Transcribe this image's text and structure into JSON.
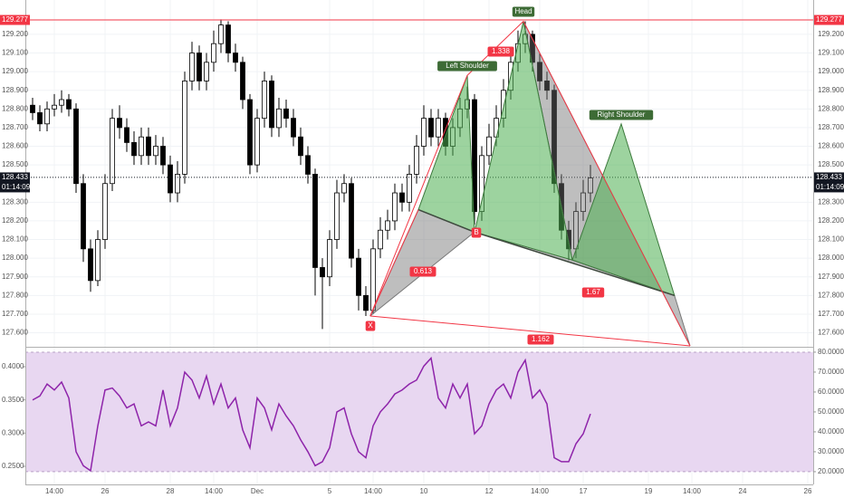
{
  "chart_data": {
    "type": "candlestick",
    "categories": [
      null,
      null,
      null,
      "14:00",
      null,
      null,
      null,
      null,
      null,
      null,
      "26",
      null,
      null,
      null,
      null,
      null,
      null,
      null,
      null,
      "28",
      null,
      null,
      null,
      null,
      null,
      "14:00",
      null,
      null,
      null,
      null,
      null,
      "Dec",
      null,
      null,
      null,
      null,
      null,
      null,
      null,
      null,
      null,
      "5",
      null,
      null,
      null,
      null,
      null,
      "14:00",
      null,
      null,
      null,
      null,
      null,
      null,
      "10",
      null,
      null,
      null,
      null,
      null,
      null,
      null,
      null,
      "12",
      null,
      null,
      null,
      null,
      null,
      null,
      "14:00",
      null,
      null,
      null,
      null,
      null,
      "17",
      null,
      null,
      null,
      null,
      null,
      null,
      null,
      null,
      "19",
      null,
      null,
      null,
      null,
      null,
      "14:00",
      null,
      null,
      null,
      null,
      null,
      null,
      "24",
      null,
      null,
      null,
      null,
      null,
      null,
      null,
      null,
      "26",
      null
    ],
    "open": [
      128.82,
      128.78,
      128.72,
      128.8,
      128.82,
      128.85,
      128.8,
      128.4,
      128.05,
      127.88,
      128.1,
      128.4,
      128.75,
      128.7,
      128.62,
      128.55,
      128.65,
      128.55,
      128.6,
      128.5,
      128.35,
      128.45,
      128.95,
      129.1,
      128.95,
      129.05,
      129.15,
      129.25,
      129.1,
      129.05,
      128.85,
      128.5,
      128.75,
      128.95,
      128.7,
      128.8,
      128.75,
      128.65,
      128.55,
      128.45,
      127.95,
      127.9,
      128.1,
      128.35,
      128.4,
      128.0,
      127.8,
      127.72,
      128.05,
      128.15,
      128.2,
      128.35,
      128.3,
      128.45,
      128.6,
      128.75,
      128.65,
      128.75,
      128.6,
      128.7,
      128.8,
      128.85,
      128.25,
      128.55,
      128.65,
      128.75,
      128.9,
      129.05,
      129.15,
      129.2,
      129.05,
      128.95,
      128.9,
      128.4,
      128.15,
      128.05,
      128.25,
      128.35,
      null,
      null,
      null,
      null,
      null,
      null,
      null,
      null,
      null,
      null,
      null,
      null,
      null,
      null,
      null,
      null,
      null,
      null,
      null,
      null,
      null,
      null,
      null,
      null,
      null,
      null,
      null,
      null,
      null,
      null,
      null
    ],
    "high": [
      128.86,
      128.82,
      128.84,
      128.88,
      128.9,
      128.88,
      128.83,
      128.45,
      128.1,
      128.15,
      128.45,
      128.8,
      128.82,
      128.75,
      128.68,
      128.7,
      128.7,
      128.66,
      128.65,
      128.55,
      128.52,
      129.0,
      129.16,
      129.14,
      129.1,
      129.22,
      129.28,
      129.27,
      129.15,
      129.08,
      128.88,
      128.8,
      129.0,
      128.98,
      128.86,
      128.85,
      128.8,
      128.7,
      128.6,
      128.48,
      128.0,
      128.15,
      128.42,
      128.45,
      128.43,
      128.05,
      127.85,
      128.1,
      128.22,
      128.26,
      128.4,
      128.4,
      128.5,
      128.66,
      128.82,
      128.8,
      128.8,
      128.78,
      128.75,
      128.86,
      128.92,
      128.88,
      128.6,
      128.72,
      128.82,
      128.96,
      129.12,
      129.22,
      129.27,
      129.22,
      129.1,
      129.0,
      128.93,
      128.45,
      128.2,
      128.3,
      128.42,
      128.5,
      null,
      null,
      null,
      null,
      null,
      null,
      null,
      null,
      null,
      null,
      null,
      null,
      null,
      null,
      null,
      null,
      null,
      null,
      null,
      null,
      null,
      null,
      null,
      null,
      null,
      null,
      null,
      null,
      null,
      null,
      null
    ],
    "low": [
      128.74,
      128.68,
      128.68,
      128.76,
      128.78,
      128.76,
      128.35,
      127.98,
      127.82,
      127.85,
      128.05,
      128.36,
      128.64,
      128.57,
      128.5,
      128.5,
      128.5,
      128.5,
      128.45,
      128.3,
      128.3,
      128.4,
      128.9,
      128.9,
      128.9,
      129.0,
      129.1,
      129.05,
      129.0,
      128.8,
      128.45,
      128.46,
      128.7,
      128.65,
      128.65,
      128.7,
      128.6,
      128.5,
      128.4,
      127.8,
      127.62,
      127.85,
      128.05,
      128.3,
      127.95,
      127.72,
      127.69,
      127.7,
      128.0,
      128.1,
      128.15,
      128.25,
      128.25,
      128.4,
      128.55,
      128.6,
      128.6,
      128.55,
      128.55,
      128.65,
      128.75,
      128.18,
      128.2,
      128.5,
      128.6,
      128.7,
      128.85,
      129.0,
      129.1,
      129.0,
      128.9,
      128.85,
      128.35,
      128.1,
      127.99,
      128.0,
      128.2,
      128.3,
      null,
      null,
      null,
      null,
      null,
      null,
      null,
      null,
      null,
      null,
      null,
      null,
      null,
      null,
      null,
      null,
      null,
      null,
      null,
      null,
      null,
      null,
      null,
      null,
      null,
      null,
      null,
      null,
      null,
      null,
      null
    ],
    "close": [
      128.78,
      128.72,
      128.8,
      128.82,
      128.85,
      128.8,
      128.4,
      128.05,
      127.88,
      128.1,
      128.4,
      128.75,
      128.7,
      128.62,
      128.55,
      128.65,
      128.55,
      128.6,
      128.5,
      128.35,
      128.45,
      128.95,
      129.1,
      128.95,
      129.05,
      129.15,
      129.25,
      129.1,
      129.05,
      128.85,
      128.5,
      128.75,
      128.95,
      128.7,
      128.8,
      128.75,
      128.65,
      128.55,
      128.45,
      127.95,
      127.9,
      128.1,
      128.35,
      128.4,
      128.0,
      127.8,
      127.72,
      128.05,
      128.15,
      128.2,
      128.35,
      128.3,
      128.45,
      128.6,
      128.75,
      128.65,
      128.75,
      128.6,
      128.7,
      128.8,
      128.85,
      128.25,
      128.55,
      128.65,
      128.75,
      128.9,
      129.05,
      129.15,
      129.2,
      129.05,
      128.95,
      128.9,
      128.4,
      128.15,
      128.05,
      128.25,
      128.35,
      128.43,
      null,
      null,
      null,
      null,
      null,
      null,
      null,
      null,
      null,
      null,
      null,
      null,
      null,
      null,
      null,
      null,
      null,
      null,
      null,
      null,
      null,
      null,
      null,
      null,
      null,
      null,
      null,
      null,
      null,
      null,
      null
    ],
    "rsi": [
      56,
      58,
      64,
      61,
      65,
      57,
      30,
      23,
      20.5,
      43,
      61,
      62,
      58,
      52,
      54,
      43,
      45,
      43,
      61,
      43,
      52,
      70,
      66,
      57,
      68,
      54,
      64,
      52,
      57,
      41,
      32,
      57,
      52,
      41,
      54,
      48,
      43,
      36,
      30,
      23,
      25,
      32,
      50,
      52,
      39,
      30,
      27,
      43,
      50,
      54,
      59,
      61,
      64,
      66,
      73,
      77,
      57,
      52,
      64,
      57,
      64,
      39,
      43,
      54,
      61,
      64,
      57,
      70,
      76,
      57,
      61,
      54,
      27,
      25,
      25,
      34,
      39,
      49,
      null,
      null,
      null,
      null,
      null,
      null,
      null,
      null,
      null,
      null,
      null,
      null,
      null,
      null,
      null,
      null,
      null,
      null,
      null,
      null,
      null,
      null,
      null,
      null,
      null,
      null,
      null,
      null,
      null,
      null,
      null
    ],
    "rsi_color": "#8e24aa",
    "rsi_band": [
      20,
      80
    ],
    "ylim": [
      127.525,
      129.384
    ],
    "yticks": [
      {
        "value": 127.6,
        "label": "127.600"
      },
      {
        "value": 127.7,
        "label": "127.700"
      },
      {
        "value": 127.8,
        "label": "127.800"
      },
      {
        "value": 127.9,
        "label": "127.900"
      },
      {
        "value": 128.0,
        "label": "128.000"
      },
      {
        "value": 128.1,
        "label": "128.100"
      },
      {
        "value": 128.2,
        "label": "128.200"
      },
      {
        "value": 128.3,
        "label": "128.300"
      },
      {
        "value": 128.5,
        "label": "128.500"
      },
      {
        "value": 128.6,
        "label": "128.600"
      },
      {
        "value": 128.7,
        "label": "128.700"
      },
      {
        "value": 128.8,
        "label": "128.800"
      },
      {
        "value": 128.9,
        "label": "128.900"
      },
      {
        "value": 129.0,
        "label": "129.000"
      },
      {
        "value": 129.1,
        "label": "129.100"
      },
      {
        "value": 129.2,
        "label": "129.200"
      }
    ],
    "y2lim": [
      13.6,
      82.7
    ],
    "y2ticks": [
      {
        "value": 20,
        "label": "20.0000"
      },
      {
        "value": 30,
        "label": "30.0000"
      },
      {
        "value": 40,
        "label": "40.0000"
      },
      {
        "value": 50,
        "label": "50.0000"
      },
      {
        "value": 60,
        "label": "60.0000"
      },
      {
        "value": 70,
        "label": "70.0000"
      },
      {
        "value": 80,
        "label": "80.0000"
      }
    ],
    "y3lim": [
      0.2227,
      0.43
    ],
    "y3ticks": [
      {
        "value": 0.25,
        "label": "0.2500"
      },
      {
        "value": 0.3,
        "label": "0.3000"
      },
      {
        "value": 0.35,
        "label": "0.3500"
      },
      {
        "value": 0.4,
        "label": "0.4000"
      }
    ],
    "hlines": [
      {
        "value": 129.277,
        "color": "#f23645"
      },
      {
        "value": 128.433,
        "color": "#131722",
        "countdown": "01:14:09"
      }
    ],
    "pattern": {
      "points": [
        {
          "x": 46.6,
          "y": 127.69
        },
        {
          "x": 53.25,
          "y": 128.26
        },
        {
          "x": 60,
          "y": 128.98
        },
        {
          "x": 61,
          "y": 128.14
        },
        {
          "x": 67.75,
          "y": 129.27
        },
        {
          "x": 74.5,
          "y": 127.99
        },
        {
          "x": 81.25,
          "y": 128.72
        },
        {
          "x": 88.6,
          "y": 127.8
        },
        {
          "x": 90.75,
          "y": 127.53
        }
      ],
      "point_labels": [
        "X",
        "B"
      ],
      "shoulder_labels": [
        "Left Shoulder",
        "Head",
        "Right Shoulder"
      ],
      "ratios": [
        0.613,
        1.338,
        1.67,
        1.162
      ]
    },
    "grid": true
  }
}
